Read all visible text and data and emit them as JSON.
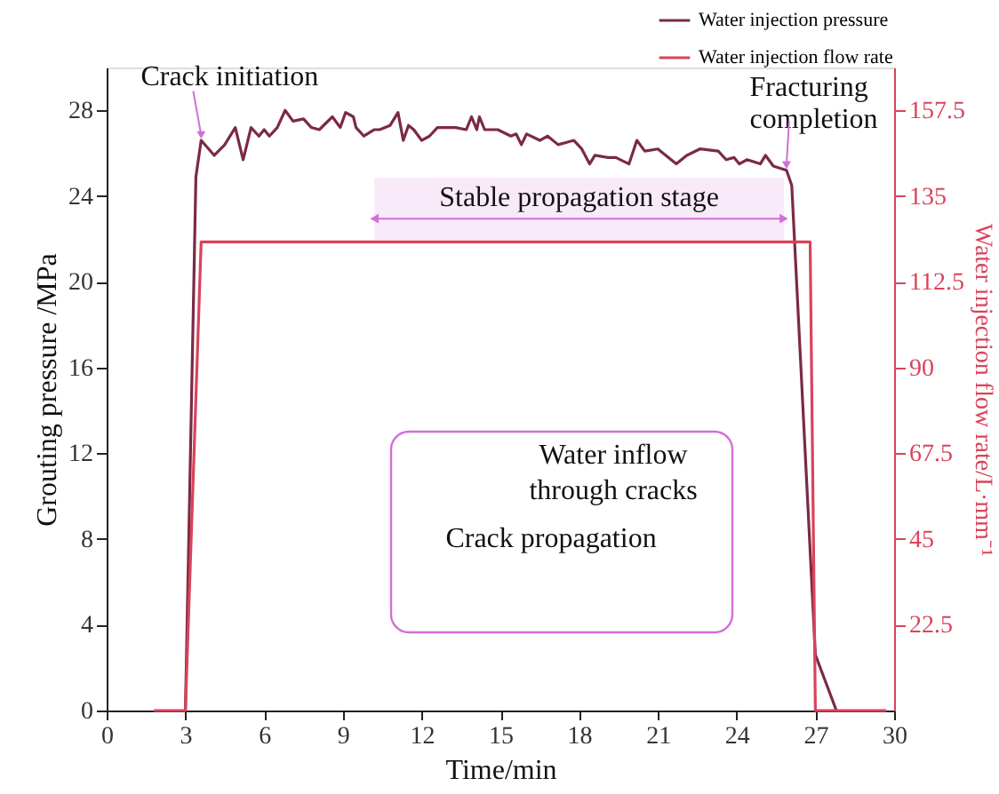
{
  "chart_data": {
    "type": "line",
    "xlabel": "Time/min",
    "ylabel": "Grouting pressure /MPa",
    "y2label": "Water injection flow rate/L·mm⁻¹",
    "xlim": [
      0,
      30
    ],
    "xticks": [
      0,
      3,
      6,
      9,
      12,
      15,
      18,
      21,
      24,
      27,
      30
    ],
    "ylim": [
      0,
      30
    ],
    "yticks": [
      0,
      4,
      8,
      12,
      16,
      20,
      24,
      28
    ],
    "y2lim": [
      0,
      168.75
    ],
    "y2ticks": [
      22.5,
      45,
      67.5,
      90,
      112.5,
      135,
      157.5
    ],
    "grid": false,
    "legend": "top right",
    "marker": "none",
    "line_style": "solid",
    "series": [
      {
        "name": "Water injection pressure",
        "color": "#7b2a45",
        "axis": "y",
        "x": [
          3.0,
          3.4,
          3.6,
          4.1,
          4.5,
          4.9,
          5.2,
          5.5,
          5.8,
          6.0,
          6.2,
          6.5,
          6.8,
          7.1,
          7.5,
          7.8,
          8.1,
          8.6,
          8.9,
          9.1,
          9.4,
          9.5,
          9.8,
          10.2,
          10.4,
          10.8,
          11.1,
          11.3,
          11.5,
          11.7,
          12.0,
          12.3,
          12.6,
          13.0,
          13.3,
          13.7,
          13.9,
          14.1,
          14.2,
          14.4,
          14.9,
          15.4,
          15.6,
          15.8,
          16.0,
          16.5,
          16.8,
          17.2,
          17.5,
          17.8,
          18.1,
          18.4,
          18.6,
          19.1,
          19.4,
          19.9,
          20.2,
          20.5,
          21.0,
          21.7,
          22.1,
          22.6,
          23.3,
          23.6,
          23.9,
          24.1,
          24.4,
          24.9,
          25.1,
          25.4,
          25.9,
          26.1,
          27.0,
          27.8
        ],
        "values": [
          0,
          24.9,
          26.6,
          25.9,
          26.4,
          27.2,
          25.7,
          27.2,
          26.8,
          27.1,
          26.8,
          27.2,
          28.0,
          27.5,
          27.6,
          27.2,
          27.1,
          27.7,
          27.2,
          27.9,
          27.7,
          27.2,
          26.8,
          27.1,
          27.1,
          27.3,
          27.9,
          26.6,
          27.3,
          27.1,
          26.6,
          26.8,
          27.2,
          27.2,
          27.2,
          27.1,
          27.7,
          27.1,
          27.7,
          27.1,
          27.1,
          26.8,
          26.9,
          26.4,
          26.9,
          26.6,
          26.8,
          26.4,
          26.5,
          26.6,
          26.2,
          25.5,
          25.9,
          25.8,
          25.8,
          25.5,
          26.6,
          26.1,
          26.2,
          25.5,
          25.9,
          26.2,
          26.1,
          25.7,
          25.8,
          25.5,
          25.7,
          25.5,
          25.9,
          25.4,
          25.2,
          24.5,
          2.6,
          0
        ]
      },
      {
        "name": "Water injection flow rate",
        "color": "#d9435a",
        "axis": "y2",
        "x": [
          1.8,
          3.0,
          3.6,
          26.8,
          27.0,
          29.7
        ],
        "values": [
          0,
          0,
          123,
          123,
          0,
          0
        ]
      }
    ],
    "annotations": [
      {
        "text": "Crack initiation",
        "x": 3.6,
        "y": 26.6
      },
      {
        "text": "Fracturing completion",
        "x": 25.9,
        "y": 25.2
      },
      "Water inflow through cracks",
      "Crack propagation"
    ],
    "bands": [
      {
        "axis": "x",
        "from": 10.2,
        "to": 25.8,
        "label": "Stable propagation stage",
        "color": "#d070d8"
      }
    ]
  }
}
